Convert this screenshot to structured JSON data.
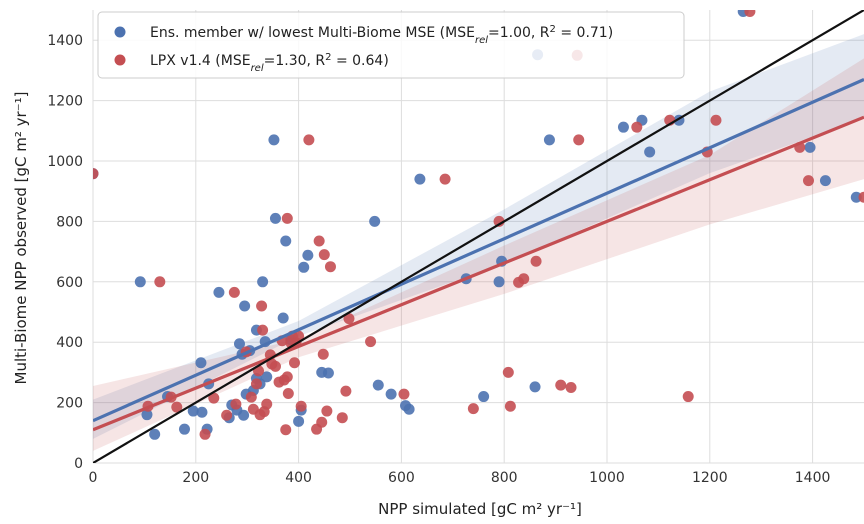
{
  "chart_data": {
    "type": "scatter",
    "xlabel": "NPP simulated [gC m² yr⁻¹]",
    "ylabel": "Multi-Biome NPP observed [gC m² yr⁻¹]",
    "xlim": [
      0,
      1500
    ],
    "ylim": [
      0,
      1500
    ],
    "xticks": [
      "0",
      "200",
      "400",
      "600",
      "800",
      "1000",
      "1200",
      "1400"
    ],
    "yticks": [
      "0",
      "200",
      "400",
      "600",
      "800",
      "1000",
      "1200",
      "1400"
    ],
    "grid": true,
    "legend_position": "top-left",
    "one_to_one_line": {
      "x": [
        0,
        1500
      ],
      "y": [
        0,
        1500
      ],
      "color": "#111111"
    },
    "series": [
      {
        "name": "Ens. member w/ lowest Multi-Biome MSE (MSE_rel=1.00, R² = 0.71)",
        "legend": {
          "prefix": "Ens. member w/ lowest Multi-Biome MSE (MSE",
          "sub": "rel",
          "mid": "=1.00, R",
          "sup": "2",
          "suffix": " = 0.71)"
        },
        "color": "#4c72b0",
        "fit": {
          "x": [
            0,
            1500
          ],
          "y": [
            140,
            1270
          ]
        },
        "band_lower": [
          [
            0,
            80
          ],
          [
            400,
            420
          ],
          [
            800,
            660
          ],
          [
            1200,
            960
          ],
          [
            1500,
            1140
          ]
        ],
        "band_upper": [
          [
            0,
            210
          ],
          [
            400,
            470
          ],
          [
            800,
            840
          ],
          [
            1200,
            1230
          ],
          [
            1500,
            1420
          ]
        ],
        "points": [
          [
            0,
            958
          ],
          [
            92,
            600
          ],
          [
            105,
            160
          ],
          [
            120,
            95
          ],
          [
            145,
            220
          ],
          [
            178,
            112
          ],
          [
            195,
            172
          ],
          [
            210,
            332
          ],
          [
            212,
            168
          ],
          [
            222,
            112
          ],
          [
            225,
            262
          ],
          [
            245,
            565
          ],
          [
            265,
            150
          ],
          [
            270,
            192
          ],
          [
            280,
            175
          ],
          [
            285,
            395
          ],
          [
            290,
            360
          ],
          [
            293,
            158
          ],
          [
            295,
            520
          ],
          [
            298,
            228
          ],
          [
            305,
            372
          ],
          [
            312,
            240
          ],
          [
            318,
            280
          ],
          [
            318,
            440
          ],
          [
            325,
            262
          ],
          [
            330,
            600
          ],
          [
            335,
            402
          ],
          [
            338,
            285
          ],
          [
            352,
            1070
          ],
          [
            355,
            810
          ],
          [
            370,
            480
          ],
          [
            375,
            735
          ],
          [
            385,
            408
          ],
          [
            400,
            138
          ],
          [
            405,
            175
          ],
          [
            410,
            648
          ],
          [
            418,
            688
          ],
          [
            445,
            300
          ],
          [
            458,
            298
          ],
          [
            548,
            800
          ],
          [
            555,
            258
          ],
          [
            580,
            228
          ],
          [
            608,
            190
          ],
          [
            615,
            178
          ],
          [
            636,
            940
          ],
          [
            726,
            610
          ],
          [
            760,
            220
          ],
          [
            790,
            600
          ],
          [
            795,
            668
          ],
          [
            860,
            252
          ],
          [
            865,
            1352
          ],
          [
            888,
            1070
          ],
          [
            1032,
            1112
          ],
          [
            1068,
            1135
          ],
          [
            1083,
            1030
          ],
          [
            1140,
            1135
          ],
          [
            1265,
            1495
          ],
          [
            1395,
            1045
          ],
          [
            1425,
            935
          ],
          [
            1485,
            880
          ]
        ]
      },
      {
        "name": "LPX v1.4 (MSE_rel=1.30, R² = 0.64)",
        "legend": {
          "prefix": "LPX v1.4 (MSE",
          "sub": "rel",
          "mid": "=1.30, R",
          "sup": "2",
          "suffix": " = 0.64)"
        },
        "color": "#c44e52",
        "fit": {
          "x": [
            0,
            1500
          ],
          "y": [
            110,
            1145
          ]
        },
        "band_lower": [
          [
            0,
            40
          ],
          [
            400,
            350
          ],
          [
            800,
            560
          ],
          [
            1200,
            790
          ],
          [
            1500,
            940
          ]
        ],
        "band_upper": [
          [
            0,
            255
          ],
          [
            400,
            410
          ],
          [
            800,
            720
          ],
          [
            1200,
            1020
          ],
          [
            1500,
            1340
          ]
        ],
        "points": [
          [
            0,
            958
          ],
          [
            107,
            188
          ],
          [
            130,
            600
          ],
          [
            152,
            218
          ],
          [
            163,
            185
          ],
          [
            218,
            95
          ],
          [
            235,
            215
          ],
          [
            260,
            158
          ],
          [
            275,
            565
          ],
          [
            278,
            195
          ],
          [
            298,
            368
          ],
          [
            308,
            218
          ],
          [
            312,
            178
          ],
          [
            318,
            262
          ],
          [
            322,
            305
          ],
          [
            325,
            160
          ],
          [
            328,
            520
          ],
          [
            330,
            440
          ],
          [
            333,
            170
          ],
          [
            338,
            195
          ],
          [
            345,
            358
          ],
          [
            348,
            328
          ],
          [
            355,
            320
          ],
          [
            362,
            268
          ],
          [
            368,
            405
          ],
          [
            372,
            275
          ],
          [
            375,
            110
          ],
          [
            378,
            810
          ],
          [
            378,
            285
          ],
          [
            380,
            230
          ],
          [
            385,
            398
          ],
          [
            388,
            420
          ],
          [
            392,
            332
          ],
          [
            395,
            398
          ],
          [
            400,
            420
          ],
          [
            405,
            188
          ],
          [
            420,
            1070
          ],
          [
            435,
            112
          ],
          [
            440,
            735
          ],
          [
            445,
            135
          ],
          [
            448,
            360
          ],
          [
            450,
            690
          ],
          [
            455,
            172
          ],
          [
            462,
            650
          ],
          [
            485,
            150
          ],
          [
            492,
            238
          ],
          [
            498,
            478
          ],
          [
            540,
            402
          ],
          [
            605,
            228
          ],
          [
            685,
            940
          ],
          [
            740,
            180
          ],
          [
            790,
            800
          ],
          [
            808,
            300
          ],
          [
            812,
            188
          ],
          [
            828,
            598
          ],
          [
            838,
            610
          ],
          [
            862,
            668
          ],
          [
            910,
            258
          ],
          [
            930,
            250
          ],
          [
            942,
            1350
          ],
          [
            945,
            1070
          ],
          [
            1058,
            1112
          ],
          [
            1122,
            1135
          ],
          [
            1158,
            220
          ],
          [
            1195,
            1030
          ],
          [
            1212,
            1135
          ],
          [
            1278,
            1495
          ],
          [
            1375,
            1045
          ],
          [
            1392,
            935
          ],
          [
            1500,
            880
          ]
        ]
      }
    ]
  }
}
